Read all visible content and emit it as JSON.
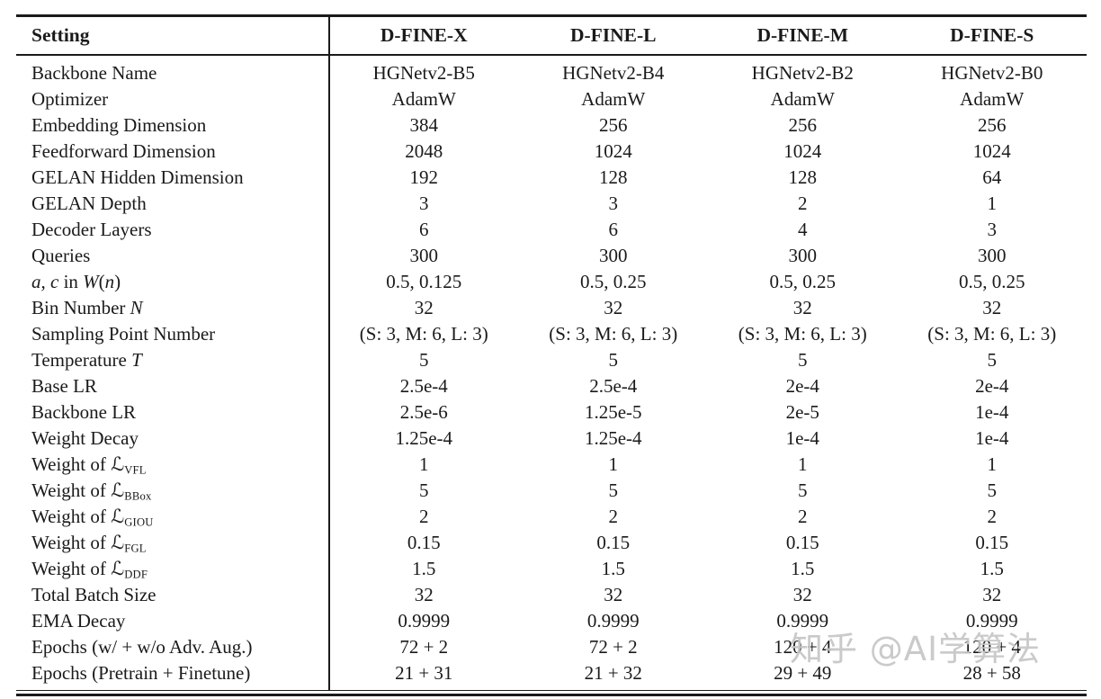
{
  "page": {
    "background_color": "#ffffff",
    "text_color": "#1a1a1a",
    "rule_color": "#1a1a1a"
  },
  "table": {
    "header": {
      "setting": "Setting",
      "models": [
        "D-FINE-X",
        "D-FINE-L",
        "D-FINE-M",
        "D-FINE-S"
      ]
    },
    "rows": [
      {
        "label": [
          {
            "t": "Backbone Name"
          }
        ],
        "values": [
          "HGNetv2-B5",
          "HGNetv2-B4",
          "HGNetv2-B2",
          "HGNetv2-B0"
        ]
      },
      {
        "label": [
          {
            "t": "Optimizer"
          }
        ],
        "values": [
          "AdamW",
          "AdamW",
          "AdamW",
          "AdamW"
        ]
      },
      {
        "label": [
          {
            "t": "Embedding Dimension"
          }
        ],
        "values": [
          "384",
          "256",
          "256",
          "256"
        ]
      },
      {
        "label": [
          {
            "t": "Feedforward Dimension"
          }
        ],
        "values": [
          "2048",
          "1024",
          "1024",
          "1024"
        ]
      },
      {
        "label": [
          {
            "t": "GELAN Hidden Dimension"
          }
        ],
        "values": [
          "192",
          "128",
          "128",
          "64"
        ]
      },
      {
        "label": [
          {
            "t": "GELAN Depth"
          }
        ],
        "values": [
          "3",
          "3",
          "2",
          "1"
        ]
      },
      {
        "label": [
          {
            "t": "Decoder Layers"
          }
        ],
        "values": [
          "6",
          "6",
          "4",
          "3"
        ]
      },
      {
        "label": [
          {
            "t": "Queries"
          }
        ],
        "values": [
          "300",
          "300",
          "300",
          "300"
        ]
      },
      {
        "label": [
          {
            "t": "a",
            "s": "i"
          },
          {
            "t": ", "
          },
          {
            "t": "c",
            "s": "i"
          },
          {
            "t": " in "
          },
          {
            "t": "W",
            "s": "i"
          },
          {
            "t": "("
          },
          {
            "t": "n",
            "s": "i"
          },
          {
            "t": ")"
          }
        ],
        "values": [
          "0.5, 0.125",
          "0.5, 0.25",
          "0.5, 0.25",
          "0.5, 0.25"
        ]
      },
      {
        "label": [
          {
            "t": "Bin Number "
          },
          {
            "t": "N",
            "s": "i"
          }
        ],
        "values": [
          "32",
          "32",
          "32",
          "32"
        ]
      },
      {
        "label": [
          {
            "t": "Sampling Point Number"
          }
        ],
        "values": [
          "(S: 3, M: 6, L: 3)",
          "(S: 3, M: 6, L: 3)",
          "(S: 3, M: 6, L: 3)",
          "(S: 3, M: 6, L: 3)"
        ]
      },
      {
        "label": [
          {
            "t": "Temperature "
          },
          {
            "t": "T",
            "s": "i"
          }
        ],
        "values": [
          "5",
          "5",
          "5",
          "5"
        ]
      },
      {
        "label": [
          {
            "t": "Base LR"
          }
        ],
        "values": [
          "2.5e-4",
          "2.5e-4",
          "2e-4",
          "2e-4"
        ]
      },
      {
        "label": [
          {
            "t": "Backbone LR"
          }
        ],
        "values": [
          "2.5e-6",
          "1.25e-5",
          "2e-5",
          "1e-4"
        ]
      },
      {
        "label": [
          {
            "t": "Weight Decay"
          }
        ],
        "values": [
          "1.25e-4",
          "1.25e-4",
          "1e-4",
          "1e-4"
        ]
      },
      {
        "label": [
          {
            "t": "Weight of "
          },
          {
            "t": "ℒ",
            "s": "scr"
          },
          {
            "t": "VFL",
            "s": "sub"
          }
        ],
        "values": [
          "1",
          "1",
          "1",
          "1"
        ]
      },
      {
        "label": [
          {
            "t": "Weight of "
          },
          {
            "t": "ℒ",
            "s": "scr"
          },
          {
            "t": "BBox",
            "s": "sub"
          }
        ],
        "values": [
          "5",
          "5",
          "5",
          "5"
        ]
      },
      {
        "label": [
          {
            "t": "Weight of "
          },
          {
            "t": "ℒ",
            "s": "scr"
          },
          {
            "t": "GIOU",
            "s": "sub"
          }
        ],
        "values": [
          "2",
          "2",
          "2",
          "2"
        ]
      },
      {
        "label": [
          {
            "t": "Weight of "
          },
          {
            "t": "ℒ",
            "s": "scr"
          },
          {
            "t": "FGL",
            "s": "sub"
          }
        ],
        "values": [
          "0.15",
          "0.15",
          "0.15",
          "0.15"
        ]
      },
      {
        "label": [
          {
            "t": "Weight of "
          },
          {
            "t": "ℒ",
            "s": "scr"
          },
          {
            "t": "DDF",
            "s": "sub"
          }
        ],
        "values": [
          "1.5",
          "1.5",
          "1.5",
          "1.5"
        ]
      },
      {
        "label": [
          {
            "t": "Total Batch Size"
          }
        ],
        "values": [
          "32",
          "32",
          "32",
          "32"
        ]
      },
      {
        "label": [
          {
            "t": "EMA Decay"
          }
        ],
        "values": [
          "0.9999",
          "0.9999",
          "0.9999",
          "0.9999"
        ]
      },
      {
        "label": [
          {
            "t": "Epochs (w/ + w/o Adv. Aug.)"
          }
        ],
        "values": [
          "72 + 2",
          "72 + 2",
          "120 + 4",
          "120 + 4"
        ]
      },
      {
        "label": [
          {
            "t": "Epochs (Pretrain + Finetune)"
          }
        ],
        "values": [
          "21 + 31",
          "21 + 32",
          "29 + 49",
          "28 + 58"
        ]
      }
    ]
  },
  "watermark": {
    "text": "知乎 @AI学算法",
    "color": "#c6c6c6"
  }
}
